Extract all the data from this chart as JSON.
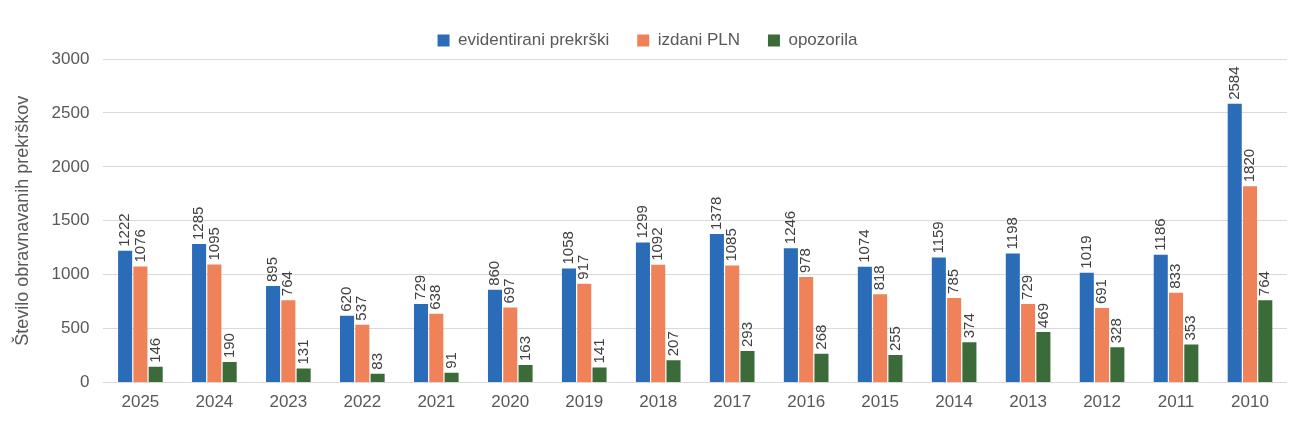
{
  "chart_data": {
    "type": "bar",
    "ylabel": "Število obravnavanih prekrškov",
    "categories": [
      "2025",
      "2024",
      "2023",
      "2022",
      "2021",
      "2020",
      "2019",
      "2018",
      "2017",
      "2016",
      "2015",
      "2014",
      "2013",
      "2012",
      "2011",
      "2010"
    ],
    "series": [
      {
        "name": "evidentirani prekrški",
        "color": "#2b6cb8",
        "values": [
          1222,
          1285,
          895,
          620,
          729,
          860,
          1058,
          1299,
          1378,
          1246,
          1074,
          1159,
          1198,
          1019,
          1186,
          2584
        ]
      },
      {
        "name": "izdani PLN",
        "color": "#ef8259",
        "values": [
          1076,
          1095,
          764,
          537,
          638,
          697,
          917,
          1092,
          1085,
          978,
          818,
          785,
          729,
          691,
          833,
          1820
        ]
      },
      {
        "name": "opozorila",
        "color": "#3c6b3a",
        "values": [
          146,
          190,
          131,
          83,
          91,
          163,
          141,
          207,
          293,
          268,
          255,
          374,
          469,
          328,
          353,
          764
        ]
      }
    ],
    "ylim": [
      0,
      3000
    ],
    "yticks": [
      0,
      500,
      1000,
      1500,
      2000,
      2500,
      3000
    ],
    "grid": "y",
    "legend": "top",
    "data_labels": true
  }
}
